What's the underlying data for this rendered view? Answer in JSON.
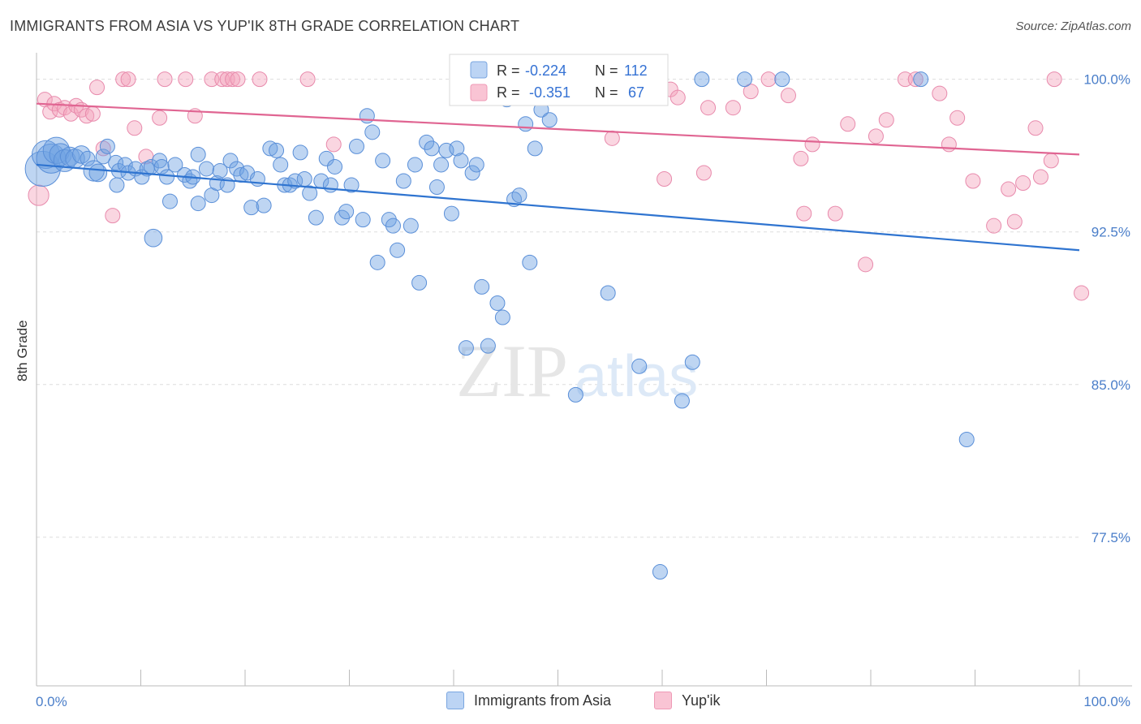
{
  "title": "IMMIGRANTS FROM ASIA VS YUP'IK 8TH GRADE CORRELATION CHART",
  "source": "Source: ZipAtlas.com",
  "watermark": {
    "zip": "ZIP",
    "atlas": "atlas"
  },
  "colors": {
    "blue": "#6fa1e3",
    "blue_line": "#2f74d0",
    "pink": "#f4a3bd",
    "pink_line": "#e06592",
    "axis_text": "#4a7ec9",
    "grid": "#dddddd"
  },
  "chart_data": {
    "type": "scatter",
    "title": "IMMIGRANTS FROM ASIA VS YUP'IK 8TH GRADE CORRELATION CHART",
    "xlabel": "",
    "ylabel": "8th Grade",
    "xlim": [
      0,
      100
    ],
    "ylim": [
      70.2,
      101.3
    ],
    "x_tick_labels": [
      "0.0%",
      "100.0%"
    ],
    "y_ticks": [
      100.0,
      92.5,
      85.0,
      77.5
    ],
    "y_tick_labels": [
      "100.0%",
      "92.5%",
      "85.0%",
      "77.5%"
    ],
    "legend_box": {
      "rows": [
        {
          "r_label": "R =",
          "r_value": "-0.224",
          "n_label": "N =",
          "n_value": "112"
        },
        {
          "r_label": "R =",
          "r_value": "-0.351",
          "n_label": "N =",
          "n_value": "67"
        }
      ]
    },
    "series": [
      {
        "name": "Immigrants from Asia",
        "trend": {
          "x": [
            0,
            100
          ],
          "y": [
            95.8,
            91.6
          ]
        },
        "points": [
          {
            "x": 0.6,
            "y": 95.6,
            "s": 2.4
          },
          {
            "x": 0.9,
            "y": 96.3,
            "s": 1.9
          },
          {
            "x": 1.4,
            "y": 96.1,
            "s": 2.0
          },
          {
            "x": 1.9,
            "y": 96.5,
            "s": 1.8
          },
          {
            "x": 2.3,
            "y": 96.3,
            "s": 1.5
          },
          {
            "x": 2.7,
            "y": 96.0,
            "s": 1.5
          },
          {
            "x": 3.2,
            "y": 96.2,
            "s": 1.3
          },
          {
            "x": 3.7,
            "y": 96.1,
            "s": 1.3
          },
          {
            "x": 4.3,
            "y": 96.3,
            "s": 1.2
          },
          {
            "x": 4.9,
            "y": 96.1,
            "s": 1.0
          },
          {
            "x": 5.5,
            "y": 95.5,
            "s": 1.4
          },
          {
            "x": 5.9,
            "y": 95.4,
            "s": 1.2
          },
          {
            "x": 6.4,
            "y": 96.2,
            "s": 1.0
          },
          {
            "x": 6.8,
            "y": 96.7,
            "s": 1.0
          },
          {
            "x": 7.6,
            "y": 95.9,
            "s": 1.0
          },
          {
            "x": 7.9,
            "y": 95.5,
            "s": 1.0
          },
          {
            "x": 7.7,
            "y": 94.8,
            "s": 1.0
          },
          {
            "x": 8.5,
            "y": 95.8,
            "s": 1.0
          },
          {
            "x": 8.8,
            "y": 95.4,
            "s": 1.0
          },
          {
            "x": 9.5,
            "y": 95.6,
            "s": 1.0
          },
          {
            "x": 10.1,
            "y": 95.2,
            "s": 1.0
          },
          {
            "x": 10.6,
            "y": 95.6,
            "s": 1.0
          },
          {
            "x": 11.0,
            "y": 95.7,
            "s": 1.0
          },
          {
            "x": 11.2,
            "y": 92.2,
            "s": 1.2
          },
          {
            "x": 11.8,
            "y": 96.0,
            "s": 1.0
          },
          {
            "x": 12.0,
            "y": 95.7,
            "s": 1.0
          },
          {
            "x": 12.5,
            "y": 95.2,
            "s": 1.0
          },
          {
            "x": 12.8,
            "y": 94.0,
            "s": 1.0
          },
          {
            "x": 13.3,
            "y": 95.8,
            "s": 1.0
          },
          {
            "x": 14.2,
            "y": 95.3,
            "s": 1.0
          },
          {
            "x": 14.7,
            "y": 95.0,
            "s": 1.0
          },
          {
            "x": 15.0,
            "y": 95.2,
            "s": 1.0
          },
          {
            "x": 15.5,
            "y": 93.9,
            "s": 1.0
          },
          {
            "x": 15.5,
            "y": 96.3,
            "s": 1.0
          },
          {
            "x": 16.3,
            "y": 95.6,
            "s": 1.0
          },
          {
            "x": 16.8,
            "y": 94.3,
            "s": 1.0
          },
          {
            "x": 17.3,
            "y": 94.9,
            "s": 1.0
          },
          {
            "x": 17.6,
            "y": 95.5,
            "s": 1.0
          },
          {
            "x": 18.3,
            "y": 94.8,
            "s": 1.0
          },
          {
            "x": 18.6,
            "y": 96.0,
            "s": 1.0
          },
          {
            "x": 19.2,
            "y": 95.6,
            "s": 1.0
          },
          {
            "x": 19.6,
            "y": 95.3,
            "s": 1.0
          },
          {
            "x": 20.2,
            "y": 95.4,
            "s": 1.0
          },
          {
            "x": 20.6,
            "y": 93.7,
            "s": 1.0
          },
          {
            "x": 21.2,
            "y": 95.1,
            "s": 1.0
          },
          {
            "x": 21.8,
            "y": 93.8,
            "s": 1.0
          },
          {
            "x": 22.4,
            "y": 96.6,
            "s": 1.0
          },
          {
            "x": 23.0,
            "y": 96.5,
            "s": 1.0
          },
          {
            "x": 23.4,
            "y": 95.8,
            "s": 1.0
          },
          {
            "x": 23.8,
            "y": 94.8,
            "s": 1.0
          },
          {
            "x": 24.3,
            "y": 94.8,
            "s": 1.0
          },
          {
            "x": 24.8,
            "y": 95.0,
            "s": 1.0
          },
          {
            "x": 25.3,
            "y": 96.4,
            "s": 1.0
          },
          {
            "x": 25.7,
            "y": 95.1,
            "s": 1.0
          },
          {
            "x": 26.2,
            "y": 94.4,
            "s": 1.0
          },
          {
            "x": 26.8,
            "y": 93.2,
            "s": 1.0
          },
          {
            "x": 27.3,
            "y": 95.0,
            "s": 1.0
          },
          {
            "x": 27.8,
            "y": 96.1,
            "s": 1.0
          },
          {
            "x": 28.2,
            "y": 94.8,
            "s": 1.0
          },
          {
            "x": 28.6,
            "y": 95.7,
            "s": 1.0
          },
          {
            "x": 29.3,
            "y": 93.2,
            "s": 1.0
          },
          {
            "x": 29.7,
            "y": 93.5,
            "s": 1.0
          },
          {
            "x": 30.2,
            "y": 94.8,
            "s": 1.0
          },
          {
            "x": 30.7,
            "y": 96.7,
            "s": 1.0
          },
          {
            "x": 31.3,
            "y": 93.1,
            "s": 1.0
          },
          {
            "x": 31.7,
            "y": 98.2,
            "s": 1.0
          },
          {
            "x": 32.2,
            "y": 97.4,
            "s": 1.0
          },
          {
            "x": 32.7,
            "y": 91.0,
            "s": 1.0
          },
          {
            "x": 33.2,
            "y": 96.0,
            "s": 1.0
          },
          {
            "x": 33.8,
            "y": 93.1,
            "s": 1.0
          },
          {
            "x": 34.2,
            "y": 92.8,
            "s": 1.0
          },
          {
            "x": 34.6,
            "y": 91.6,
            "s": 1.0
          },
          {
            "x": 35.2,
            "y": 95.0,
            "s": 1.0
          },
          {
            "x": 35.9,
            "y": 92.8,
            "s": 1.0
          },
          {
            "x": 36.3,
            "y": 95.8,
            "s": 1.0
          },
          {
            "x": 36.7,
            "y": 90.0,
            "s": 1.0
          },
          {
            "x": 37.4,
            "y": 96.9,
            "s": 1.0
          },
          {
            "x": 37.9,
            "y": 96.6,
            "s": 1.0
          },
          {
            "x": 38.4,
            "y": 94.7,
            "s": 1.0
          },
          {
            "x": 38.8,
            "y": 95.8,
            "s": 1.0
          },
          {
            "x": 39.3,
            "y": 96.5,
            "s": 1.0
          },
          {
            "x": 39.8,
            "y": 93.4,
            "s": 1.0
          },
          {
            "x": 40.3,
            "y": 96.6,
            "s": 1.0
          },
          {
            "x": 40.7,
            "y": 96.0,
            "s": 1.0
          },
          {
            "x": 41.2,
            "y": 86.8,
            "s": 1.0
          },
          {
            "x": 41.8,
            "y": 95.4,
            "s": 1.0
          },
          {
            "x": 42.2,
            "y": 95.8,
            "s": 1.0
          },
          {
            "x": 42.7,
            "y": 89.8,
            "s": 1.0
          },
          {
            "x": 43.3,
            "y": 86.9,
            "s": 1.0
          },
          {
            "x": 44.2,
            "y": 89.0,
            "s": 1.0
          },
          {
            "x": 44.7,
            "y": 88.3,
            "s": 1.0
          },
          {
            "x": 45.1,
            "y": 99.0,
            "s": 1.0
          },
          {
            "x": 45.8,
            "y": 94.1,
            "s": 1.0
          },
          {
            "x": 46.3,
            "y": 94.3,
            "s": 1.0
          },
          {
            "x": 46.9,
            "y": 97.8,
            "s": 1.0
          },
          {
            "x": 47.3,
            "y": 91.0,
            "s": 1.0
          },
          {
            "x": 47.8,
            "y": 96.6,
            "s": 1.0
          },
          {
            "x": 48.4,
            "y": 98.5,
            "s": 1.0
          },
          {
            "x": 49.2,
            "y": 98.0,
            "s": 1.0
          },
          {
            "x": 49.8,
            "y": 99.2,
            "s": 1.0
          },
          {
            "x": 51.7,
            "y": 84.5,
            "s": 1.0
          },
          {
            "x": 53.2,
            "y": 100.0,
            "s": 1.0
          },
          {
            "x": 54.8,
            "y": 89.5,
            "s": 1.0
          },
          {
            "x": 57.8,
            "y": 85.9,
            "s": 1.0
          },
          {
            "x": 59.8,
            "y": 75.8,
            "s": 1.0
          },
          {
            "x": 61.9,
            "y": 84.2,
            "s": 1.0
          },
          {
            "x": 62.9,
            "y": 86.1,
            "s": 1.0
          },
          {
            "x": 63.8,
            "y": 100.0,
            "s": 1.0
          },
          {
            "x": 67.9,
            "y": 100.0,
            "s": 1.0
          },
          {
            "x": 71.5,
            "y": 100.0,
            "s": 1.0
          },
          {
            "x": 84.8,
            "y": 100.0,
            "s": 1.0
          },
          {
            "x": 89.2,
            "y": 82.3,
            "s": 1.0
          }
        ]
      },
      {
        "name": "Yup'ik",
        "trend": {
          "x": [
            0,
            100
          ],
          "y": [
            98.8,
            96.3
          ]
        },
        "points": [
          {
            "x": 0.2,
            "y": 94.3,
            "s": 1.4
          },
          {
            "x": 0.8,
            "y": 99.0,
            "s": 1.0
          },
          {
            "x": 1.3,
            "y": 98.4,
            "s": 1.0
          },
          {
            "x": 1.7,
            "y": 98.8,
            "s": 1.0
          },
          {
            "x": 2.2,
            "y": 98.5,
            "s": 1.0
          },
          {
            "x": 2.7,
            "y": 98.6,
            "s": 1.0
          },
          {
            "x": 3.3,
            "y": 98.3,
            "s": 1.0
          },
          {
            "x": 3.8,
            "y": 98.7,
            "s": 1.0
          },
          {
            "x": 4.3,
            "y": 98.5,
            "s": 1.0
          },
          {
            "x": 4.8,
            "y": 98.2,
            "s": 1.0
          },
          {
            "x": 5.4,
            "y": 98.3,
            "s": 1.0
          },
          {
            "x": 5.8,
            "y": 99.6,
            "s": 1.0
          },
          {
            "x": 6.4,
            "y": 96.6,
            "s": 1.0
          },
          {
            "x": 7.3,
            "y": 93.3,
            "s": 1.0
          },
          {
            "x": 8.3,
            "y": 100.0,
            "s": 1.0
          },
          {
            "x": 8.8,
            "y": 100.0,
            "s": 1.0
          },
          {
            "x": 9.4,
            "y": 97.6,
            "s": 1.0
          },
          {
            "x": 10.5,
            "y": 96.2,
            "s": 1.0
          },
          {
            "x": 11.8,
            "y": 98.1,
            "s": 1.0
          },
          {
            "x": 12.3,
            "y": 100.0,
            "s": 1.0
          },
          {
            "x": 14.3,
            "y": 100.0,
            "s": 1.0
          },
          {
            "x": 15.2,
            "y": 98.2,
            "s": 1.0
          },
          {
            "x": 16.8,
            "y": 100.0,
            "s": 1.0
          },
          {
            "x": 17.8,
            "y": 100.0,
            "s": 1.0
          },
          {
            "x": 18.3,
            "y": 100.0,
            "s": 1.0
          },
          {
            "x": 18.8,
            "y": 100.0,
            "s": 1.0
          },
          {
            "x": 19.3,
            "y": 100.0,
            "s": 1.0
          },
          {
            "x": 21.4,
            "y": 100.0,
            "s": 1.0
          },
          {
            "x": 26.0,
            "y": 100.0,
            "s": 1.0
          },
          {
            "x": 28.5,
            "y": 96.8,
            "s": 1.0
          },
          {
            "x": 41.0,
            "y": 100.0,
            "s": 1.0
          },
          {
            "x": 48.4,
            "y": 99.6,
            "s": 1.0
          },
          {
            "x": 52.6,
            "y": 100.0,
            "s": 1.0
          },
          {
            "x": 55.2,
            "y": 97.1,
            "s": 1.0
          },
          {
            "x": 57.9,
            "y": 100.0,
            "s": 1.0
          },
          {
            "x": 60.2,
            "y": 95.1,
            "s": 1.0
          },
          {
            "x": 60.8,
            "y": 99.5,
            "s": 1.0
          },
          {
            "x": 61.5,
            "y": 99.1,
            "s": 1.0
          },
          {
            "x": 64.0,
            "y": 95.4,
            "s": 1.0
          },
          {
            "x": 64.4,
            "y": 98.6,
            "s": 1.0
          },
          {
            "x": 66.8,
            "y": 98.6,
            "s": 1.0
          },
          {
            "x": 68.5,
            "y": 99.4,
            "s": 1.0
          },
          {
            "x": 70.2,
            "y": 100.0,
            "s": 1.0
          },
          {
            "x": 72.1,
            "y": 99.2,
            "s": 1.0
          },
          {
            "x": 73.3,
            "y": 96.1,
            "s": 1.0
          },
          {
            "x": 73.6,
            "y": 93.4,
            "s": 1.0
          },
          {
            "x": 74.4,
            "y": 96.8,
            "s": 1.0
          },
          {
            "x": 76.6,
            "y": 93.4,
            "s": 1.0
          },
          {
            "x": 77.8,
            "y": 97.8,
            "s": 1.0
          },
          {
            "x": 79.5,
            "y": 90.9,
            "s": 1.0
          },
          {
            "x": 80.5,
            "y": 97.2,
            "s": 1.0
          },
          {
            "x": 81.5,
            "y": 98.0,
            "s": 1.0
          },
          {
            "x": 83.3,
            "y": 100.0,
            "s": 1.0
          },
          {
            "x": 84.3,
            "y": 100.0,
            "s": 1.0
          },
          {
            "x": 86.6,
            "y": 99.3,
            "s": 1.0
          },
          {
            "x": 87.5,
            "y": 96.8,
            "s": 1.0
          },
          {
            "x": 88.3,
            "y": 98.1,
            "s": 1.0
          },
          {
            "x": 89.8,
            "y": 95.0,
            "s": 1.0
          },
          {
            "x": 91.8,
            "y": 92.8,
            "s": 1.0
          },
          {
            "x": 93.2,
            "y": 94.6,
            "s": 1.0
          },
          {
            "x": 93.8,
            "y": 93.0,
            "s": 1.0
          },
          {
            "x": 94.6,
            "y": 94.9,
            "s": 1.0
          },
          {
            "x": 95.8,
            "y": 97.6,
            "s": 1.0
          },
          {
            "x": 96.3,
            "y": 95.2,
            "s": 1.0
          },
          {
            "x": 97.3,
            "y": 96.0,
            "s": 1.0
          },
          {
            "x": 97.6,
            "y": 100.0,
            "s": 1.0
          },
          {
            "x": 100.2,
            "y": 89.5,
            "s": 1.0
          }
        ]
      }
    ]
  }
}
